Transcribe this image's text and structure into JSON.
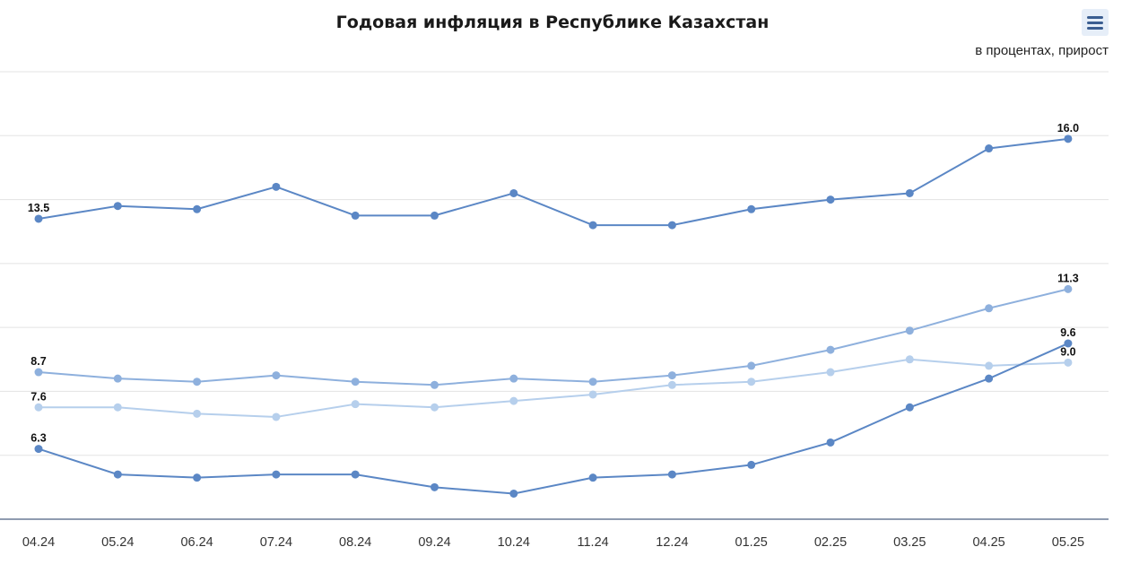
{
  "header": {
    "title": "Годовая инфляция в Республике Казахстан",
    "subtitle": "в процентах, прирост",
    "menu_icon": "hamburger-menu-icon"
  },
  "chart_data": {
    "type": "line",
    "title": "Годовая инфляция в Республике Казахстан",
    "subtitle": "в процентах, прирост",
    "xlabel": "",
    "ylabel": "",
    "categories": [
      "04.24",
      "05.24",
      "06.24",
      "07.24",
      "08.24",
      "09.24",
      "10.24",
      "11.24",
      "12.24",
      "01.25",
      "02.25",
      "03.25",
      "04.25",
      "05.25"
    ],
    "ylim": [
      4.1,
      18.1
    ],
    "grid": true,
    "legend": "none",
    "series": [
      {
        "color": "#5b87c5",
        "values": [
          13.5,
          13.9,
          13.8,
          14.5,
          13.6,
          13.6,
          14.3,
          13.3,
          13.3,
          13.8,
          14.1,
          14.3,
          15.7,
          16.0
        ],
        "labels": {
          "0": "13.5",
          "13": "16.0"
        }
      },
      {
        "color": "#8eb0dd",
        "values": [
          8.7,
          8.5,
          8.4,
          8.6,
          8.4,
          8.3,
          8.5,
          8.4,
          8.6,
          8.9,
          9.4,
          10.0,
          10.7,
          11.3
        ],
        "labels": {
          "0": "8.7",
          "13": "11.3"
        }
      },
      {
        "color": "#b6cfec",
        "values": [
          7.6,
          7.6,
          7.4,
          7.3,
          7.7,
          7.6,
          7.8,
          8.0,
          8.3,
          8.4,
          8.7,
          9.1,
          8.9,
          9.0
        ],
        "labels": {
          "0": "7.6",
          "13": "9.0"
        }
      },
      {
        "color": "#5b87c5",
        "values": [
          6.3,
          5.5,
          5.4,
          5.5,
          5.5,
          5.1,
          4.9,
          5.4,
          5.5,
          5.8,
          6.5,
          7.6,
          8.5,
          9.6
        ],
        "labels": {
          "0": "6.3",
          "13": "9.6"
        }
      }
    ]
  }
}
